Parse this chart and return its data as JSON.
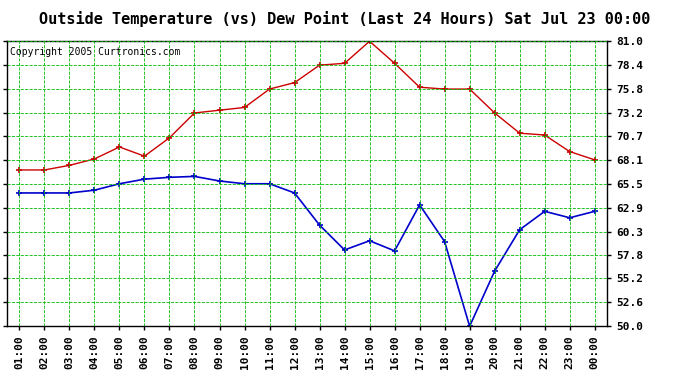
{
  "title": "Outside Temperature (vs) Dew Point (Last 24 Hours) Sat Jul 23 00:00",
  "copyright": "Copyright 2005 Curtronics.com",
  "x_labels": [
    "01:00",
    "02:00",
    "03:00",
    "04:00",
    "05:00",
    "06:00",
    "07:00",
    "08:00",
    "09:00",
    "10:00",
    "11:00",
    "12:00",
    "13:00",
    "14:00",
    "15:00",
    "16:00",
    "17:00",
    "18:00",
    "19:00",
    "20:00",
    "21:00",
    "22:00",
    "23:00",
    "00:00"
  ],
  "temp_data": [
    67.0,
    67.0,
    67.5,
    68.2,
    69.5,
    68.5,
    70.5,
    73.2,
    73.5,
    73.8,
    75.8,
    76.5,
    78.4,
    78.6,
    81.0,
    78.6,
    76.0,
    75.8,
    75.8,
    73.2,
    71.0,
    70.8,
    69.0,
    68.1
  ],
  "dew_data": [
    64.5,
    64.5,
    64.5,
    64.8,
    65.5,
    66.0,
    66.2,
    66.3,
    65.8,
    65.5,
    65.5,
    64.5,
    61.0,
    58.3,
    59.3,
    58.2,
    63.2,
    59.2,
    50.0,
    56.0,
    60.5,
    62.5,
    61.8,
    62.5
  ],
  "temp_color": "#cc0000",
  "dew_color": "#0000cc",
  "bg_color": "#ffffff",
  "plot_bg_color": "#ffffff",
  "grid_color": "#00bb00",
  "ylim_min": 50.0,
  "ylim_max": 81.0,
  "yticks": [
    81.0,
    78.4,
    75.8,
    73.2,
    70.7,
    68.1,
    65.5,
    62.9,
    60.3,
    57.8,
    55.2,
    52.6,
    50.0
  ],
  "title_fontsize": 11,
  "copyright_fontsize": 7,
  "tick_fontsize": 8
}
